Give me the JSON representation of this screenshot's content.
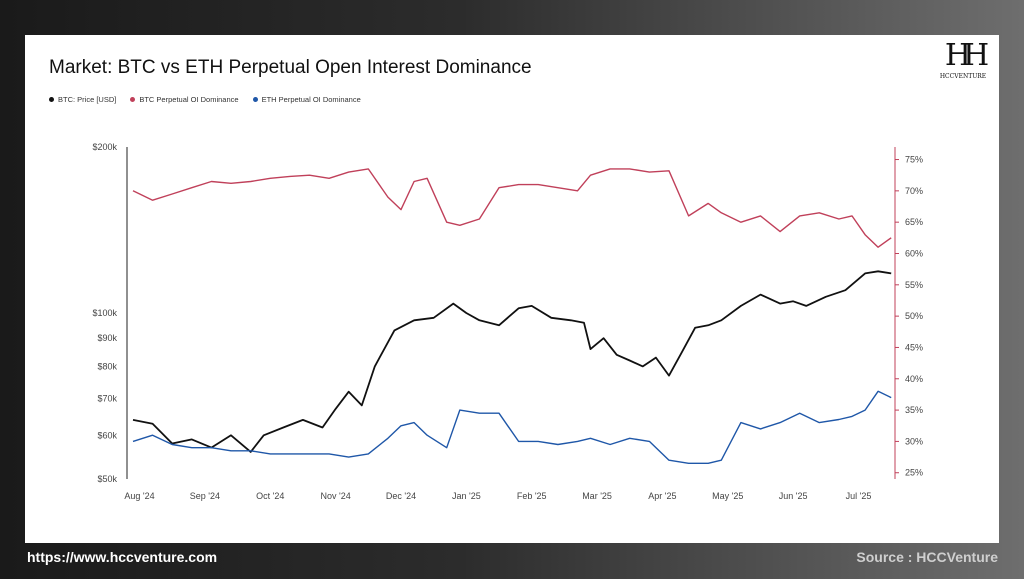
{
  "title": "Market: BTC vs ETH Perpetual Open Interest Dominance",
  "logo_text": "HCCVENTURE",
  "footer": {
    "url": "https://www.hccventure.com",
    "source": "Source : HCCVenture"
  },
  "colors": {
    "btc_price": "#111111",
    "btc_oi": "#c0405a",
    "eth_oi": "#1f57a8"
  },
  "chart_data": {
    "type": "line",
    "x_ticks": [
      "Aug '24",
      "Sep '24",
      "Oct '24",
      "Nov '24",
      "Dec '24",
      "Jan '25",
      "Feb '25",
      "Mar '25",
      "Apr '25",
      "May '25",
      "Jun '25",
      "Jul '25"
    ],
    "left_axis": {
      "scale": "log",
      "ticks": [
        "$200k",
        "$100k",
        "$90k",
        "$80k",
        "$70k",
        "$60k",
        "$50k"
      ],
      "tick_values": [
        200000,
        100000,
        90000,
        80000,
        70000,
        60000,
        50000
      ],
      "ylim": [
        50000,
        200000
      ]
    },
    "right_axis": {
      "ticks": [
        "75%",
        "70%",
        "65%",
        "60%",
        "55%",
        "50%",
        "45%",
        "40%",
        "35%",
        "30%",
        "25%"
      ],
      "tick_values": [
        75,
        70,
        65,
        60,
        55,
        50,
        45,
        40,
        35,
        30,
        25
      ],
      "ylim": [
        24,
        77
      ]
    },
    "legend": [
      "BTC: Price [USD]",
      "BTC Perpetual OI Dominance",
      "ETH Perpetual OI Dominance"
    ],
    "series": [
      {
        "name": "BTC: Price [USD]",
        "axis": "left",
        "color": "#111111",
        "x": [
          0,
          0.3,
          0.6,
          0.9,
          1.2,
          1.5,
          1.8,
          2.0,
          2.3,
          2.6,
          2.9,
          3.1,
          3.3,
          3.5,
          3.7,
          4.0,
          4.3,
          4.6,
          4.9,
          5.1,
          5.3,
          5.6,
          5.9,
          6.1,
          6.4,
          6.7,
          6.9,
          7.0,
          7.2,
          7.4,
          7.6,
          7.8,
          8.0,
          8.2,
          8.4,
          8.6,
          8.8,
          9.0,
          9.3,
          9.6,
          9.9,
          10.1,
          10.3,
          10.6,
          10.9,
          11.2,
          11.4,
          11.6
        ],
        "values": [
          64000,
          63000,
          58000,
          59000,
          57000,
          60000,
          56000,
          60000,
          62000,
          64000,
          62000,
          67000,
          72000,
          68000,
          80000,
          93000,
          97000,
          98000,
          104000,
          100000,
          97000,
          95000,
          102000,
          103000,
          98000,
          97000,
          96000,
          86000,
          90000,
          84000,
          82000,
          80000,
          83000,
          77000,
          85000,
          94000,
          95000,
          97000,
          103000,
          108000,
          104000,
          105000,
          103000,
          107000,
          110000,
          118000,
          119000,
          118000
        ]
      },
      {
        "name": "BTC Perpetual OI Dominance",
        "axis": "right",
        "color": "#c0405a",
        "x": [
          0,
          0.3,
          0.6,
          0.9,
          1.2,
          1.5,
          1.8,
          2.1,
          2.4,
          2.7,
          3.0,
          3.3,
          3.6,
          3.9,
          4.1,
          4.3,
          4.5,
          4.8,
          5.0,
          5.3,
          5.6,
          5.9,
          6.2,
          6.5,
          6.8,
          7.0,
          7.3,
          7.6,
          7.9,
          8.2,
          8.5,
          8.8,
          9.0,
          9.3,
          9.6,
          9.9,
          10.2,
          10.5,
          10.8,
          11.0,
          11.2,
          11.4,
          11.6
        ],
        "values": [
          70,
          68.5,
          69.5,
          70.5,
          71.5,
          71.2,
          71.5,
          72,
          72.3,
          72.5,
          72,
          73,
          73.5,
          69,
          67,
          71.5,
          72,
          65,
          64.5,
          65.5,
          70.5,
          71,
          71,
          70.5,
          70,
          72.5,
          73.5,
          73.5,
          73,
          73.2,
          66,
          68,
          66.5,
          65,
          66,
          63.5,
          66,
          66.5,
          65.5,
          66,
          63,
          61,
          62.5
        ]
      },
      {
        "name": "ETH Perpetual OI Dominance",
        "axis": "right",
        "color": "#1f57a8",
        "x": [
          0,
          0.3,
          0.6,
          0.9,
          1.2,
          1.5,
          1.8,
          2.1,
          2.4,
          2.7,
          3.0,
          3.3,
          3.6,
          3.9,
          4.1,
          4.3,
          4.5,
          4.8,
          5.0,
          5.3,
          5.6,
          5.9,
          6.2,
          6.5,
          6.8,
          7.0,
          7.3,
          7.6,
          7.9,
          8.2,
          8.5,
          8.8,
          9.0,
          9.3,
          9.6,
          9.9,
          10.2,
          10.5,
          10.8,
          11.0,
          11.2,
          11.4,
          11.6
        ],
        "values": [
          30,
          31,
          29.5,
          29,
          29,
          28.5,
          28.5,
          28,
          28,
          28,
          28,
          27.5,
          28,
          30.5,
          32.5,
          33,
          31,
          29,
          35,
          34.5,
          34.5,
          30,
          30,
          29.5,
          30,
          30.5,
          29.5,
          30.5,
          30,
          27,
          26.5,
          26.5,
          27,
          33,
          32,
          33,
          34.5,
          33,
          33.5,
          34,
          35,
          38,
          37
        ]
      }
    ]
  }
}
